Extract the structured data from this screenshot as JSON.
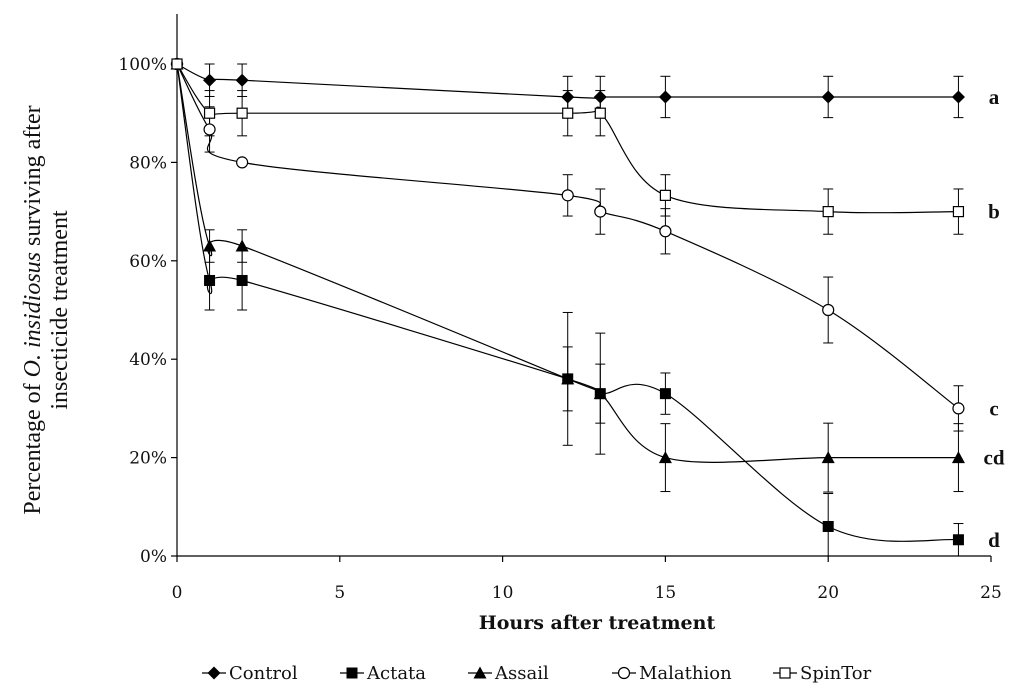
{
  "chart_data": {
    "type": "line",
    "xlabel": "Hours after treatment",
    "ylabel_line1_prefix": "Percentage of ",
    "ylabel_line1_italic": "O. insidiosus",
    "ylabel_line1_suffix": " surviving after",
    "ylabel_line2": "insecticide treatment",
    "xlim": [
      0,
      25
    ],
    "ylim": [
      0,
      100
    ],
    "x_ticks": [
      "0",
      "5",
      "10",
      "15",
      "20",
      "25"
    ],
    "y_ticks": [
      "0%",
      "20%",
      "40%",
      "60%",
      "80%",
      "100%"
    ],
    "grid": false,
    "legend_position": "bottom",
    "series": [
      {
        "name": "Control",
        "marker": "diamond-filled",
        "x": [
          0,
          1,
          2,
          12,
          13,
          15,
          20,
          24
        ],
        "y": [
          100,
          96.7,
          96.7,
          93.3,
          93.3,
          93.3,
          93.3,
          93.3
        ],
        "err": [
          0,
          3.3,
          3.3,
          4.2,
          4.2,
          4.2,
          4.2,
          4.2
        ],
        "sig_label": "a"
      },
      {
        "name": "Actata",
        "marker": "square-filled",
        "x": [
          0,
          1,
          2,
          12,
          13,
          15,
          20,
          24
        ],
        "y": [
          100,
          56,
          56,
          36,
          33,
          33,
          6,
          3.3
        ],
        "err": [
          0,
          6,
          6,
          13.5,
          12.3,
          4.2,
          6.7,
          3.3
        ],
        "sig_label": "d"
      },
      {
        "name": "Assail",
        "marker": "triangle-filled",
        "x": [
          0,
          1,
          2,
          12,
          13,
          15,
          20,
          24
        ],
        "y": [
          100,
          63,
          63,
          36,
          33,
          20,
          20,
          20
        ],
        "err": [
          0,
          3.3,
          3.3,
          6.5,
          6,
          6.9,
          7,
          6.9
        ],
        "sig_label": "cd"
      },
      {
        "name": "Malathion",
        "marker": "circle-open",
        "x": [
          0,
          1,
          2,
          12,
          13,
          15,
          20,
          24
        ],
        "y": [
          100,
          86.7,
          80,
          73.3,
          70,
          66,
          50,
          30
        ],
        "err": [
          0,
          4.6,
          0,
          4.2,
          4.6,
          4.6,
          6.7,
          4.6
        ],
        "sig_label": "c"
      },
      {
        "name": "SpinTor",
        "marker": "square-open",
        "x": [
          0,
          1,
          2,
          12,
          13,
          15,
          20,
          24
        ],
        "y": [
          100,
          90,
          90,
          90,
          90,
          73.3,
          70,
          70
        ],
        "err": [
          0,
          4.6,
          4.6,
          4.6,
          4.6,
          4.2,
          4.6,
          4.6
        ],
        "sig_label": "b"
      }
    ]
  }
}
